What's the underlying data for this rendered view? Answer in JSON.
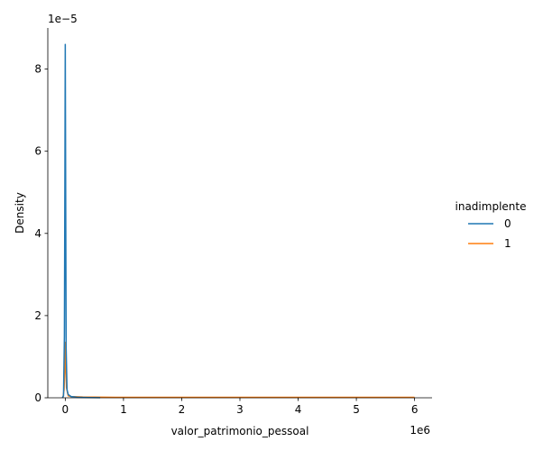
{
  "chart_data": {
    "type": "line",
    "xlabel": "valor_patrimonio_pessoal",
    "ylabel": "Density",
    "x_offset_text": "1e6",
    "y_offset_text": "1e−5",
    "x_scale": 1000000,
    "y_scale": 1e-05,
    "xlim": [
      -0.3,
      6.3
    ],
    "ylim": [
      0,
      9
    ],
    "x_ticks": [
      0,
      1,
      2,
      3,
      4,
      5,
      6
    ],
    "y_ticks": [
      0,
      2,
      4,
      6,
      8
    ],
    "grid": false,
    "legend": {
      "title": "inadimplente",
      "placement": "right-center"
    },
    "series": [
      {
        "name": "0",
        "color": "#1f77b4",
        "x": [
          -0.05,
          -0.03,
          -0.015,
          -0.006,
          0.0,
          0.006,
          0.015,
          0.03,
          0.05,
          0.1,
          0.2,
          0.4,
          0.6
        ],
        "y": [
          0.0,
          0.05,
          1.5,
          5.5,
          8.6,
          5.5,
          1.2,
          0.2,
          0.08,
          0.03,
          0.015,
          0.006,
          0.003
        ]
      },
      {
        "name": "1",
        "color": "#ff7f0e",
        "x": [
          -0.04,
          -0.02,
          -0.008,
          0.0,
          0.008,
          0.02,
          0.05,
          0.1,
          0.3,
          1.0,
          2.0,
          3.0,
          4.0,
          5.0,
          6.0
        ],
        "y": [
          0.0,
          0.2,
          0.8,
          1.35,
          0.8,
          0.25,
          0.05,
          0.03,
          0.02,
          0.01,
          0.01,
          0.01,
          0.01,
          0.01,
          0.01
        ]
      }
    ]
  }
}
